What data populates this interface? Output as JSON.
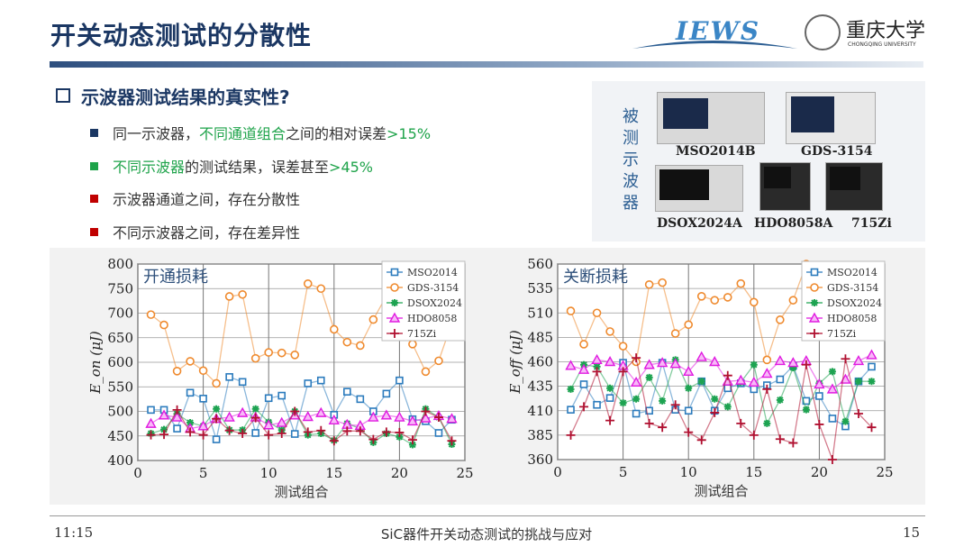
{
  "title": "开关动态测试的分散性",
  "logos": {
    "left": "IEWS",
    "right_cn": "重庆大学",
    "right_en": "CHONGQING UNIVERSITY"
  },
  "heading": "示波器测试结果的真实性?",
  "bullets": [
    {
      "parts": [
        {
          "t": "同一示波器，",
          "c": "#333"
        },
        {
          "t": "不同通道组合",
          "c": "#1ea34a"
        },
        {
          "t": "之间的相对误差",
          "c": "#333"
        },
        {
          "t": ">15%",
          "c": "#1ea34a"
        }
      ],
      "marker": "#1b3763"
    },
    {
      "parts": [
        {
          "t": "不同示波器",
          "c": "#1ea34a"
        },
        {
          "t": "的测试结果，误差甚至",
          "c": "#333"
        },
        {
          "t": ">45%",
          "c": "#1ea34a"
        }
      ],
      "marker": "#1ea34a"
    },
    {
      "parts": [
        {
          "t": "示波器通道之间，存在分散性",
          "c": "#333"
        }
      ],
      "marker": "#c00000"
    },
    {
      "parts": [
        {
          "t": "不同示波器之间，存在差异性",
          "c": "#333"
        }
      ],
      "marker": "#c00000"
    }
  ],
  "scopes": {
    "side_label": "被测示波器",
    "names": [
      "MSO2014B",
      "GDS-3154",
      "DSOX2024A",
      "HDO8058A",
      "715Zi"
    ]
  },
  "footer": {
    "time": "11:15",
    "center": "SiC器件开关动态测试的挑战与应对",
    "page": "15"
  },
  "colors": {
    "MSO2014": "#2b7bbd",
    "GDS-3154": "#ef8a2e",
    "DSOX2024": "#1da351",
    "HDO8058": "#e01be0",
    "715Zi": "#b01030"
  },
  "chart_data": [
    {
      "type": "line",
      "title": "开通损耗",
      "xlabel": "测试组合",
      "ylabel": "E_on (μJ)",
      "xlim": [
        0,
        25
      ],
      "ylim": [
        400,
        800
      ],
      "xticks": [
        0,
        5,
        10,
        15,
        20,
        25
      ],
      "yticks": [
        400,
        450,
        500,
        550,
        600,
        650,
        700,
        750,
        800
      ],
      "grid": true,
      "legend": "top-right",
      "x": [
        1,
        2,
        3,
        4,
        5,
        6,
        7,
        8,
        9,
        10,
        11,
        12,
        13,
        14,
        15,
        16,
        17,
        18,
        19,
        20,
        21,
        22,
        23,
        24
      ],
      "series": [
        {
          "name": "MSO2014",
          "marker": "square",
          "values": [
            503,
            503,
            465,
            538,
            526,
            443,
            570,
            560,
            456,
            527,
            532,
            454,
            557,
            563,
            493,
            540,
            525,
            500,
            536,
            563,
            484,
            480,
            456,
            483
          ]
        },
        {
          "name": "GDS-3154",
          "marker": "circle",
          "values": [
            697,
            676,
            582,
            602,
            583,
            557,
            734,
            738,
            608,
            620,
            619,
            615,
            760,
            750,
            667,
            641,
            634,
            687,
            735,
            760,
            637,
            581,
            603,
            680
          ]
        },
        {
          "name": "DSOX2024",
          "marker": "star",
          "values": [
            455,
            463,
            495,
            477,
            470,
            505,
            462,
            462,
            505,
            478,
            462,
            500,
            452,
            455,
            441,
            475,
            465,
            437,
            455,
            448,
            432,
            505,
            488,
            433
          ]
        },
        {
          "name": "HDO8058",
          "marker": "triangle",
          "values": [
            475,
            492,
            488,
            465,
            470,
            485,
            488,
            497,
            488,
            472,
            477,
            492,
            489,
            497,
            482,
            473,
            471,
            488,
            492,
            488,
            480,
            486,
            491,
            485
          ]
        },
        {
          "name": "715Zi",
          "marker": "plus",
          "values": [
            452,
            453,
            503,
            458,
            452,
            485,
            461,
            455,
            487,
            452,
            455,
            500,
            458,
            461,
            440,
            460,
            460,
            443,
            458,
            457,
            442,
            500,
            488,
            440
          ]
        }
      ]
    },
    {
      "type": "line",
      "title": "关断损耗",
      "xlabel": "测试组合",
      "ylabel": "E_off (μJ)",
      "xlim": [
        0,
        25
      ],
      "ylim": [
        360,
        560
      ],
      "xticks": [
        0,
        5,
        10,
        15,
        20,
        25
      ],
      "yticks": [
        360,
        385,
        410,
        435,
        460,
        485,
        510,
        535,
        560
      ],
      "grid": true,
      "legend": "top-right",
      "x": [
        1,
        2,
        3,
        4,
        5,
        6,
        7,
        8,
        9,
        10,
        11,
        12,
        13,
        14,
        15,
        16,
        17,
        18,
        19,
        20,
        21,
        22,
        23,
        24
      ],
      "series": [
        {
          "name": "MSO2014",
          "marker": "square",
          "values": [
            411,
            437,
            416,
            423,
            459,
            407,
            410,
            459,
            411,
            410,
            440,
            410,
            433,
            438,
            432,
            436,
            442,
            456,
            420,
            425,
            402,
            394,
            440,
            455
          ]
        },
        {
          "name": "GDS-3154",
          "marker": "circle",
          "values": [
            512,
            478,
            510,
            491,
            476,
            460,
            539,
            541,
            489,
            498,
            527,
            523,
            526,
            540,
            521,
            462,
            503,
            523,
            560,
            545,
            530,
            520,
            535,
            550
          ]
        },
        {
          "name": "DSOX2024",
          "marker": "star",
          "values": [
            432,
            457,
            455,
            433,
            418,
            422,
            444,
            420,
            462,
            433,
            440,
            422,
            414,
            439,
            457,
            397,
            421,
            454,
            411,
            438,
            450,
            399,
            440,
            440
          ]
        },
        {
          "name": "HDO8058",
          "marker": "triangle",
          "values": [
            456,
            452,
            462,
            460,
            456,
            439,
            457,
            459,
            458,
            450,
            465,
            460,
            440,
            441,
            439,
            448,
            461,
            459,
            461,
            437,
            432,
            442,
            461,
            467
          ]
        },
        {
          "name": "715Zi",
          "marker": "plus",
          "values": [
            385,
            414,
            450,
            400,
            450,
            464,
            397,
            393,
            416,
            388,
            380,
            408,
            446,
            397,
            385,
            432,
            381,
            377,
            457,
            396,
            360,
            463,
            407,
            393
          ]
        }
      ]
    }
  ]
}
